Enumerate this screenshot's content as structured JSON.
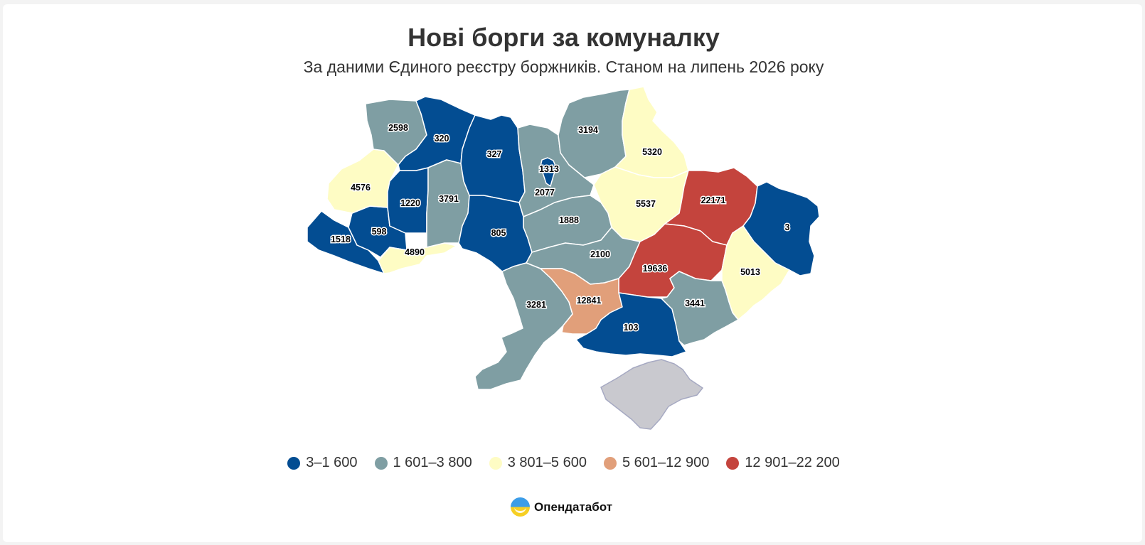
{
  "title": "Нові борги за комуналку",
  "subtitle": "За даними Єдиного реєстру боржників. Станом на липень 2026 року",
  "legend": [
    {
      "label": "3–1 600",
      "color": "#034d92"
    },
    {
      "label": "1 601–3 800",
      "color": "#7f9ea3"
    },
    {
      "label": "3 801–5 600",
      "color": "#fefcc4"
    },
    {
      "label": "5 601–12 900",
      "color": "#e19f7a"
    },
    {
      "label": "12 901–22 200",
      "color": "#c4443d"
    }
  ],
  "regions": [
    {
      "id": "volyn",
      "value": "2598",
      "color": "#7f9ea3"
    },
    {
      "id": "rivne",
      "value": "320",
      "color": "#034d92"
    },
    {
      "id": "zhytomyr",
      "value": "327",
      "color": "#034d92"
    },
    {
      "id": "kyiv-oblast",
      "value": "2077",
      "color": "#7f9ea3"
    },
    {
      "id": "kyiv-city",
      "value": "1313",
      "color": "#034d92"
    },
    {
      "id": "chernihiv",
      "value": "3194",
      "color": "#7f9ea3"
    },
    {
      "id": "sumy",
      "value": "5320",
      "color": "#fefcc4"
    },
    {
      "id": "lviv",
      "value": "4576",
      "color": "#fefcc4"
    },
    {
      "id": "ternopil",
      "value": "1220",
      "color": "#034d92"
    },
    {
      "id": "khmelnytskyi",
      "value": "3791",
      "color": "#7f9ea3"
    },
    {
      "id": "vinnytsia",
      "value": "805",
      "color": "#034d92"
    },
    {
      "id": "cherkasy",
      "value": "1888",
      "color": "#7f9ea3"
    },
    {
      "id": "poltava",
      "value": "5537",
      "color": "#fefcc4"
    },
    {
      "id": "kharkiv",
      "value": "22171",
      "color": "#c4443d"
    },
    {
      "id": "luhansk",
      "value": "3",
      "color": "#034d92"
    },
    {
      "id": "zakarpattia",
      "value": "1518",
      "color": "#034d92"
    },
    {
      "id": "ivano-frankivsk",
      "value": "598",
      "color": "#034d92"
    },
    {
      "id": "chernivtsi",
      "value": "4890",
      "color": "#fefcc4"
    },
    {
      "id": "kirovohrad",
      "value": "2100",
      "color": "#7f9ea3"
    },
    {
      "id": "dnipropetrovsk",
      "value": "19636",
      "color": "#c4443d"
    },
    {
      "id": "donetsk",
      "value": "5013",
      "color": "#fefcc4"
    },
    {
      "id": "odesa",
      "value": "3281",
      "color": "#7f9ea3"
    },
    {
      "id": "mykolaiv",
      "value": "12841",
      "color": "#e19f7a"
    },
    {
      "id": "kherson",
      "value": "103",
      "color": "#034d92"
    },
    {
      "id": "zaporizhzhia",
      "value": "3441",
      "color": "#7f9ea3"
    },
    {
      "id": "crimea",
      "value": "",
      "color": "#c9c9cf"
    }
  ],
  "brand": {
    "name": "Опендатабот"
  }
}
